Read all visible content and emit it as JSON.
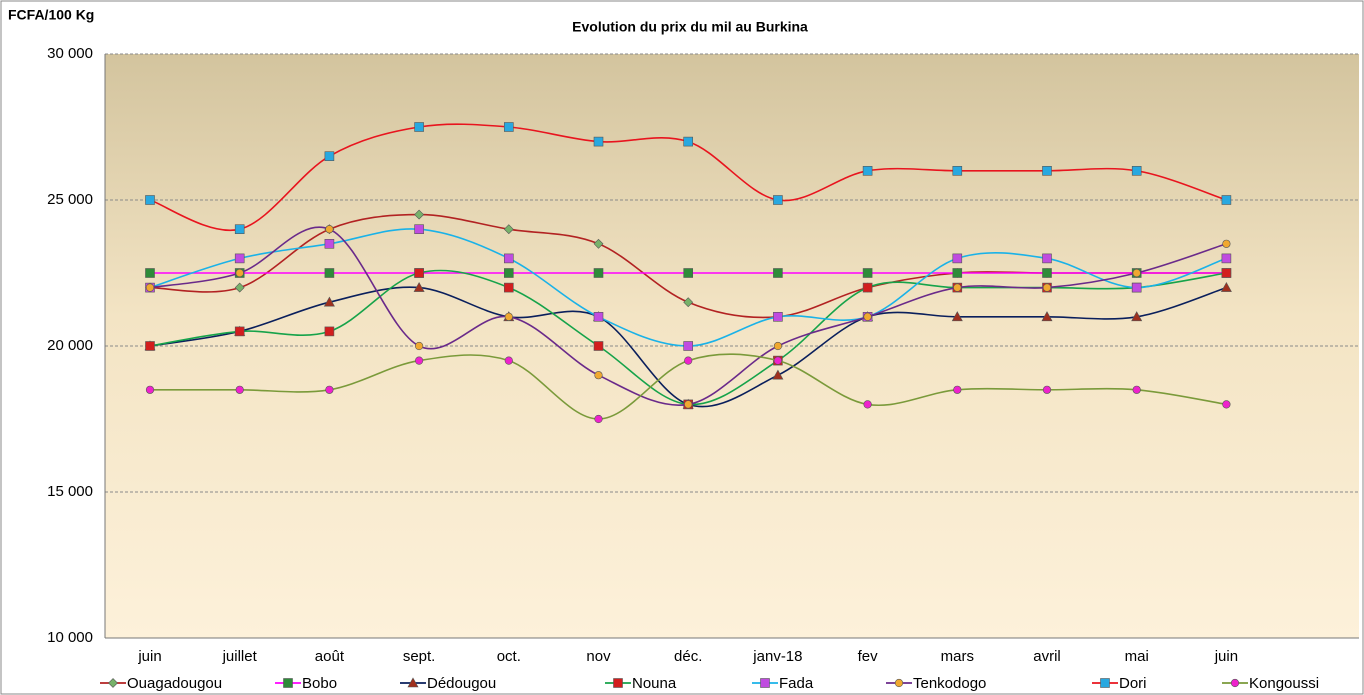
{
  "chart_data": {
    "type": "line",
    "title": "Evolution du prix du mil au Burkina",
    "y_label": "FCFA/100 Kg",
    "categories": [
      "juin",
      "juillet",
      "août",
      "sept.",
      "oct.",
      "nov",
      "déc.",
      "janv-18",
      "fev",
      "mars",
      "avril",
      "mai",
      "juin"
    ],
    "ylim": [
      10000,
      30000
    ],
    "yticks": [
      {
        "value": 10000,
        "label": "10 000"
      },
      {
        "value": 15000,
        "label": "15 000"
      },
      {
        "value": 20000,
        "label": "20 000"
      },
      {
        "value": 25000,
        "label": "25 000"
      },
      {
        "value": 30000,
        "label": "30 000"
      }
    ],
    "grid": true,
    "smooth": true,
    "legend": "bottom",
    "series": [
      {
        "name": "Ouagadougou",
        "color": "#b22222",
        "marker": "diamond",
        "marker_color": "#77b26a",
        "values": [
          22000,
          22000,
          24000,
          24500,
          24000,
          23500,
          21500,
          21000,
          22000,
          22500,
          22500,
          22500,
          22500
        ]
      },
      {
        "name": "Bobo",
        "color": "#ff00ff",
        "marker": "square",
        "marker_color": "#2e8b3a",
        "values": [
          22500,
          22500,
          22500,
          22500,
          22500,
          22500,
          22500,
          22500,
          22500,
          22500,
          22500,
          22500,
          22500
        ]
      },
      {
        "name": "Dédougou",
        "color": "#0a1f5c",
        "marker": "triangle",
        "marker_color": "#a0301e",
        "values": [
          20000,
          20500,
          21500,
          22000,
          21000,
          21000,
          18000,
          19000,
          21000,
          21000,
          21000,
          21000,
          22000
        ]
      },
      {
        "name": "Nouna",
        "color": "#16a34a",
        "marker": "square",
        "marker_color": "#d21e1e",
        "values": [
          20000,
          20500,
          20500,
          22500,
          22000,
          20000,
          18000,
          19500,
          22000,
          22000,
          22000,
          22000,
          22500
        ]
      },
      {
        "name": "Fada",
        "color": "#1ab2e8",
        "marker": "square",
        "marker_color": "#c04ce0",
        "values": [
          22000,
          23000,
          23500,
          24000,
          23000,
          21000,
          20000,
          21000,
          21000,
          23000,
          23000,
          22000,
          23000
        ]
      },
      {
        "name": "Tenkodogo",
        "color": "#6a2a8a",
        "marker": "circle",
        "marker_color": "#f0a830",
        "values": [
          22000,
          22500,
          24000,
          20000,
          21000,
          19000,
          18000,
          20000,
          21000,
          22000,
          22000,
          22500,
          23500
        ]
      },
      {
        "name": "Dori",
        "color": "#e8141e",
        "marker": "square",
        "marker_color": "#28a8e0",
        "values": [
          25000,
          24000,
          26500,
          27500,
          27500,
          27000,
          27000,
          25000,
          26000,
          26000,
          26000,
          26000,
          25000
        ]
      },
      {
        "name": "Kongoussi",
        "color": "#7a9a3a",
        "marker": "circle",
        "marker_color": "#ee22cc",
        "values": [
          18500,
          18500,
          18500,
          19500,
          19500,
          17500,
          19500,
          19500,
          18000,
          18500,
          18500,
          18500,
          18000
        ]
      }
    ]
  }
}
